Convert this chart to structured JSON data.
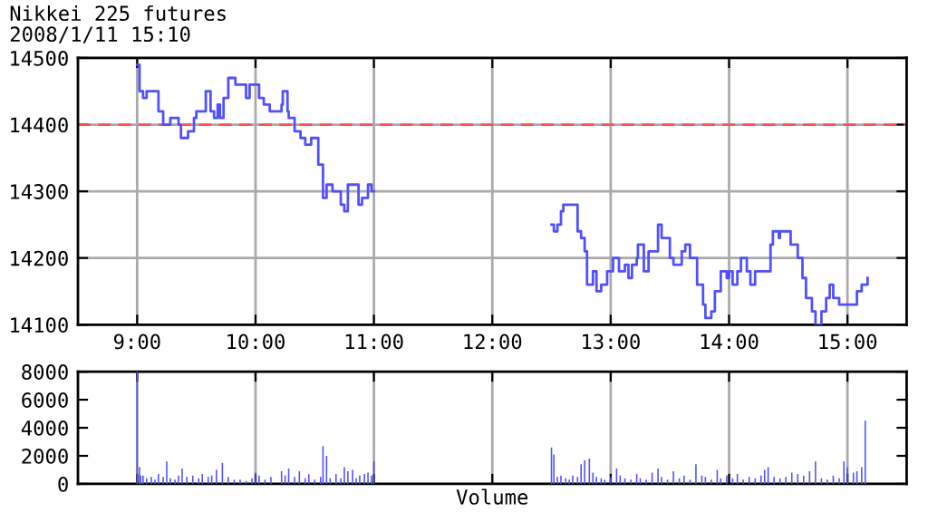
{
  "chart_data": [
    {
      "type": "step",
      "title": "Nikkei 225 futures",
      "subtitle": "2008/1/11 15:10",
      "xlim": [
        8.5,
        15.5
      ],
      "xticks": [
        {
          "value": 9,
          "label": "9:00"
        },
        {
          "value": 10,
          "label": "10:00"
        },
        {
          "value": 11,
          "label": "11:00"
        },
        {
          "value": 12,
          "label": "12:00"
        },
        {
          "value": 13,
          "label": "13:00"
        },
        {
          "value": 14,
          "label": "14:00"
        },
        {
          "value": 15,
          "label": "15:00"
        }
      ],
      "ylim": [
        14100,
        14500
      ],
      "yticks": [
        14100,
        14200,
        14300,
        14400,
        14500
      ],
      "grid": true,
      "ref_lines": [
        {
          "axis": "y",
          "value": 14400,
          "color": "#ff5050",
          "line_style": "dashed"
        }
      ],
      "series": [
        {
          "color": "#5050ff",
          "x": [
            9.0,
            9.02,
            9.05,
            9.08,
            9.18,
            9.22,
            9.28,
            9.35,
            9.37,
            9.43,
            9.48,
            9.5,
            9.58,
            9.62,
            9.65,
            9.68,
            9.7,
            9.73,
            9.77,
            9.83,
            9.92,
            9.95,
            10.03,
            10.07,
            10.12,
            10.22,
            10.23,
            10.27,
            10.28,
            10.33,
            10.38,
            10.42,
            10.47,
            10.53,
            10.57,
            10.6,
            10.65,
            10.72,
            10.75,
            10.78,
            10.87,
            10.9,
            10.95,
            10.98,
            11.0,
            12.5,
            12.52,
            12.55,
            12.58,
            12.6,
            12.72,
            12.75,
            12.78,
            12.8,
            12.85,
            12.88,
            12.92,
            12.97,
            13.02,
            13.07,
            13.12,
            13.15,
            13.18,
            13.22,
            13.23,
            13.28,
            13.32,
            13.4,
            13.43,
            13.5,
            13.53,
            13.6,
            13.63,
            13.67,
            13.73,
            13.78,
            13.8,
            13.85,
            13.88,
            13.93,
            13.98,
            14.0,
            14.03,
            14.07,
            14.1,
            14.15,
            14.18,
            14.22,
            14.35,
            14.37,
            14.42,
            14.43,
            14.52,
            14.58,
            14.62,
            14.65,
            14.7,
            14.73,
            14.78,
            14.82,
            14.85,
            14.88,
            14.93,
            15.08,
            15.12,
            15.17
          ],
          "values": [
            14490,
            14450,
            14440,
            14450,
            14420,
            14400,
            14410,
            14400,
            14380,
            14390,
            14410,
            14420,
            14450,
            14420,
            14410,
            14430,
            14410,
            14440,
            14470,
            14460,
            14440,
            14460,
            14440,
            14430,
            14420,
            14430,
            14450,
            14420,
            14410,
            14390,
            14380,
            14370,
            14380,
            14340,
            14290,
            14310,
            14300,
            14280,
            14270,
            14310,
            14280,
            14290,
            14310,
            14300,
            null,
            14250,
            14240,
            14250,
            14270,
            14280,
            14240,
            14230,
            14210,
            14160,
            14180,
            14150,
            14160,
            14180,
            14200,
            14180,
            14190,
            14170,
            14190,
            14200,
            14220,
            14180,
            14210,
            14250,
            14230,
            14200,
            14190,
            14210,
            14220,
            14200,
            14160,
            14130,
            14110,
            14120,
            14150,
            14180,
            14170,
            14180,
            14160,
            14180,
            14200,
            14180,
            14160,
            14180,
            14220,
            14240,
            14230,
            14240,
            14220,
            14200,
            14170,
            14140,
            14120,
            14100,
            14120,
            14140,
            14160,
            14140,
            14130,
            14150,
            14160,
            14170
          ]
        }
      ]
    },
    {
      "type": "bar",
      "xlabel": "Volume",
      "tick_labels": "y",
      "grid": "x",
      "xlim": [
        8.5,
        15.5
      ],
      "xticks": [
        {
          "value": 9,
          "label": null
        },
        {
          "value": 10,
          "label": null
        },
        {
          "value": 11,
          "label": null
        },
        {
          "value": 12,
          "label": null
        },
        {
          "value": 13,
          "label": null
        },
        {
          "value": 14,
          "label": null
        },
        {
          "value": 15,
          "label": null
        }
      ],
      "ylim": [
        0,
        8000
      ],
      "yticks": [
        0,
        2000,
        4000,
        6000,
        8000
      ],
      "series": [
        {
          "color": "#5050ff",
          "x": [
            9.0,
            9.02,
            9.03,
            9.05,
            9.08,
            9.12,
            9.15,
            9.18,
            9.22,
            9.25,
            9.28,
            9.32,
            9.35,
            9.38,
            9.42,
            9.47,
            9.52,
            9.55,
            9.6,
            9.63,
            9.67,
            9.72,
            9.77,
            9.82,
            9.87,
            9.92,
            9.97,
            10.0,
            10.03,
            10.08,
            10.13,
            10.22,
            10.25,
            10.28,
            10.33,
            10.37,
            10.42,
            10.45,
            10.5,
            10.55,
            10.57,
            10.6,
            10.63,
            10.68,
            10.72,
            10.75,
            10.78,
            10.82,
            10.85,
            10.88,
            10.92,
            10.95,
            10.98,
            11.0,
            12.5,
            12.52,
            12.55,
            12.58,
            12.62,
            12.65,
            12.68,
            12.72,
            12.75,
            12.78,
            12.82,
            12.85,
            12.88,
            12.92,
            12.95,
            13.0,
            13.05,
            13.08,
            13.12,
            13.17,
            13.22,
            13.25,
            13.3,
            13.35,
            13.4,
            13.43,
            13.48,
            13.53,
            13.58,
            13.62,
            13.67,
            13.72,
            13.77,
            13.8,
            13.85,
            13.9,
            13.93,
            13.98,
            14.03,
            14.07,
            14.12,
            14.17,
            14.22,
            14.27,
            14.3,
            14.33,
            14.38,
            14.43,
            14.48,
            14.53,
            14.58,
            14.63,
            14.68,
            14.73,
            14.78,
            14.83,
            14.88,
            14.93,
            14.97,
            15.0,
            15.05,
            15.08,
            15.12,
            15.15
          ],
          "values": [
            8000,
            1200,
            600,
            600,
            400,
            500,
            300,
            700,
            500,
            1600,
            400,
            300,
            600,
            1100,
            500,
            600,
            400,
            700,
            500,
            600,
            1000,
            1500,
            500,
            300,
            300,
            200,
            400,
            800,
            600,
            300,
            500,
            900,
            600,
            1100,
            500,
            900,
            400,
            700,
            300,
            500,
            2700,
            2000,
            400,
            700,
            400,
            1200,
            900,
            1000,
            400,
            600,
            700,
            800,
            600,
            1600,
            2600,
            2100,
            500,
            600,
            400,
            300,
            600,
            500,
            1400,
            1700,
            1800,
            800,
            500,
            400,
            300,
            500,
            1100,
            600,
            400,
            300,
            700,
            400,
            300,
            800,
            1100,
            500,
            300,
            900,
            400,
            600,
            300,
            1400,
            600,
            500,
            300,
            1000,
            400,
            600,
            400,
            700,
            300,
            500,
            400,
            600,
            1000,
            1200,
            500,
            400,
            500,
            800,
            700,
            600,
            900,
            1600,
            400,
            300,
            600,
            400,
            1600,
            1200,
            800,
            900,
            1200,
            4500
          ]
        }
      ]
    }
  ]
}
